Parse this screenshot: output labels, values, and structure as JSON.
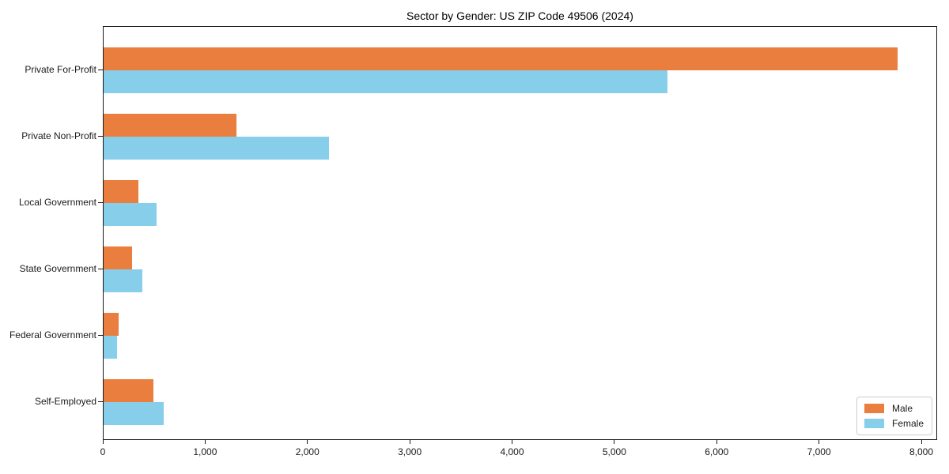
{
  "chart_data": {
    "type": "bar",
    "orientation": "horizontal",
    "title": "Sector by Gender: US ZIP Code 49506 (2024)",
    "categories": [
      "Private For-Profit",
      "Private Non-Profit",
      "Local Government",
      "State Government",
      "Federal Government",
      "Self-Employed"
    ],
    "series": [
      {
        "name": "Male",
        "color": "#EA7E3E",
        "values": [
          7760,
          1300,
          340,
          275,
          150,
          490
        ]
      },
      {
        "name": "Female",
        "color": "#87CEEB",
        "values": [
          5510,
          2200,
          520,
          380,
          130,
          590
        ]
      }
    ],
    "xlabel": "",
    "ylabel": "",
    "xlim": [
      0,
      8000
    ],
    "xticks": [
      0,
      1000,
      2000,
      3000,
      4000,
      5000,
      6000,
      7000,
      8000
    ],
    "xtick_labels": [
      "0",
      "1,000",
      "2,000",
      "3,000",
      "4,000",
      "5,000",
      "6,000",
      "7,000",
      "8,000"
    ],
    "grid": false,
    "legend": {
      "position": "lower right",
      "entries": [
        "Male",
        "Female"
      ]
    },
    "colors": {
      "spine": "#1a1a1a",
      "background": "#ffffff",
      "text": "#000000"
    }
  }
}
